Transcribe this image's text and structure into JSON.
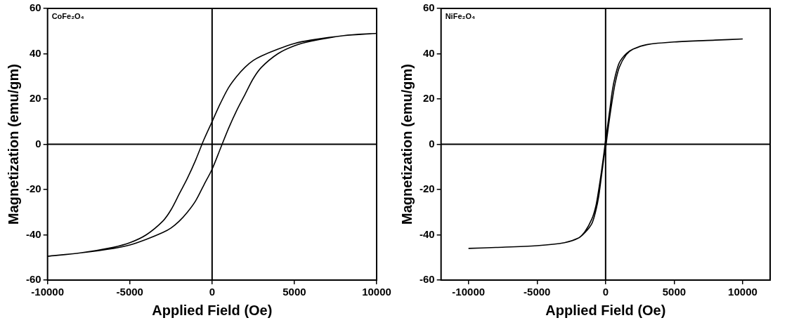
{
  "chart_data": [
    {
      "type": "line",
      "annotation": "CoFe₂O₄",
      "x_label": "Applied Field (Oe)",
      "y_label": "Magnetization (emu/gm)",
      "color": "#000000",
      "grid": false,
      "xlim": [
        -10000,
        10000
      ],
      "xticks": [
        -10000,
        -5000,
        0,
        5000,
        10000
      ],
      "ylim": [
        -60,
        60
      ],
      "yticks": [
        -60,
        -40,
        -20,
        0,
        20,
        40,
        60
      ],
      "x": [
        10000,
        8000,
        6000,
        5000,
        4000,
        3000,
        2500,
        2000,
        1500,
        1000,
        500,
        0,
        -500,
        -1000,
        -1500,
        -2000,
        -2500,
        -3000,
        -4000,
        -5000,
        -6000,
        -8000,
        -10000,
        -10000,
        -8000,
        -6000,
        -5000,
        -4000,
        -3000,
        -2500,
        -2000,
        -1500,
        -1000,
        -500,
        0,
        500,
        1000,
        1500,
        2000,
        2500,
        3000,
        4000,
        5000,
        6000,
        8000,
        10000
      ],
      "values": [
        49,
        48,
        46,
        44.5,
        42,
        39,
        37,
        34,
        30,
        25,
        18,
        10,
        2,
        -7,
        -15,
        -22,
        -29,
        -34,
        -40,
        -43.5,
        -45.5,
        -48,
        -49.5,
        -49.5,
        -48,
        -46,
        -44.5,
        -42,
        -39,
        -37,
        -34,
        -30,
        -25,
        -18,
        -11,
        -2,
        7,
        15,
        22,
        29,
        34,
        40,
        43.5,
        45.5,
        48,
        49
      ]
    },
    {
      "type": "line",
      "annotation": "NiFe₂O₄",
      "x_label": "Applied Field (Oe)",
      "y_label": "Magnetization (emu/gm)",
      "color": "#000000",
      "grid": false,
      "xlim": [
        -12000,
        12000
      ],
      "xticks": [
        -10000,
        -5000,
        0,
        5000,
        10000
      ],
      "ylim": [
        -60,
        60
      ],
      "yticks": [
        -60,
        -40,
        -20,
        0,
        20,
        40,
        60
      ],
      "x": [
        10000,
        8000,
        5000,
        3000,
        2000,
        1500,
        1000,
        700,
        500,
        300,
        100,
        0,
        -100,
        -300,
        -500,
        -700,
        -1000,
        -1500,
        -2000,
        -3000,
        -5000,
        -8000,
        -10000,
        -10000,
        -8000,
        -5000,
        -3000,
        -2000,
        -1500,
        -1000,
        -700,
        -500,
        -300,
        -100,
        0,
        100,
        300,
        500,
        700,
        1000,
        1500,
        2000,
        3000,
        5000,
        8000,
        10000
      ],
      "values": [
        46.5,
        46,
        45.2,
        44,
        42,
        40,
        36,
        30,
        24,
        15,
        6,
        2,
        -3,
        -12,
        -20,
        -27,
        -33,
        -38.5,
        -41.5,
        -43.5,
        -44.8,
        -45.6,
        -46,
        -46,
        -45.6,
        -44.8,
        -43.5,
        -41.5,
        -39,
        -35,
        -29,
        -23,
        -14,
        -5,
        -2,
        3,
        12,
        20,
        27,
        34,
        39.5,
        42,
        44,
        45.2,
        46,
        46.5
      ]
    }
  ]
}
